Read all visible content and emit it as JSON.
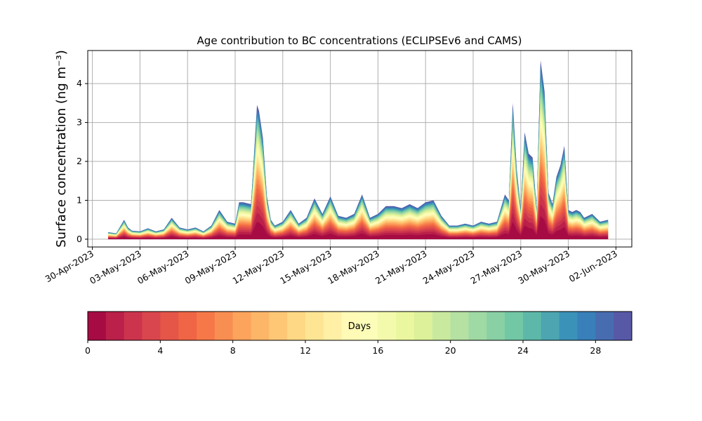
{
  "chart_data": {
    "type": "area",
    "title": "Age contribution to BC concentrations (ECLIPSEv6 and CAMS)",
    "xlabel": "",
    "ylabel": "Surface concentration (ng m⁻³)",
    "x_tick_labels": [
      "30-Apr-2023",
      "03-May-2023",
      "06-May-2023",
      "09-May-2023",
      "12-May-2023",
      "15-May-2023",
      "18-May-2023",
      "21-May-2023",
      "24-May-2023",
      "27-May-2023",
      "30-May-2023",
      "02-Jun-2023"
    ],
    "y_tick_labels": [
      "0",
      "1",
      "2",
      "3",
      "4"
    ],
    "ylim": [
      -0.2,
      4.85
    ],
    "xlim": [
      "2023-04-29T17:00",
      "2023-06-03T00:00"
    ],
    "grid": true,
    "total_series": {
      "name": "Total",
      "x": [
        "2023-05-01",
        "2023-05-01T12:00",
        "2023-05-02",
        "2023-05-02T06:00",
        "2023-05-02T12:00",
        "2023-05-03",
        "2023-05-03T12:00",
        "2023-05-04",
        "2023-05-04T12:00",
        "2023-05-05",
        "2023-05-05T12:00",
        "2023-05-06",
        "2023-05-06T12:00",
        "2023-05-07",
        "2023-05-07T12:00",
        "2023-05-08",
        "2023-05-08T12:00",
        "2023-05-09",
        "2023-05-09T06:00",
        "2023-05-09T12:00",
        "2023-05-10",
        "2023-05-10T09:00",
        "2023-05-10T12:00",
        "2023-05-10T18:00",
        "2023-05-11",
        "2023-05-11T06:00",
        "2023-05-11T12:00",
        "2023-05-12",
        "2023-05-12T12:00",
        "2023-05-13",
        "2023-05-13T12:00",
        "2023-05-14",
        "2023-05-14T12:00",
        "2023-05-15",
        "2023-05-15T12:00",
        "2023-05-16",
        "2023-05-16T12:00",
        "2023-05-17",
        "2023-05-17T12:00",
        "2023-05-18",
        "2023-05-18T12:00",
        "2023-05-19",
        "2023-05-19T12:00",
        "2023-05-20",
        "2023-05-20T12:00",
        "2023-05-21",
        "2023-05-21T12:00",
        "2023-05-22",
        "2023-05-22T12:00",
        "2023-05-23",
        "2023-05-23T12:00",
        "2023-05-24",
        "2023-05-24T12:00",
        "2023-05-25",
        "2023-05-25T12:00",
        "2023-05-26",
        "2023-05-26T06:00",
        "2023-05-26T12:00",
        "2023-05-26T18:00",
        "2023-05-27",
        "2023-05-27T06:00",
        "2023-05-27T12:00",
        "2023-05-27T18:00",
        "2023-05-28",
        "2023-05-28T06:00",
        "2023-05-28T12:00",
        "2023-05-28T18:00",
        "2023-05-29",
        "2023-05-29T06:00",
        "2023-05-29T12:00",
        "2023-05-29T18:00",
        "2023-05-30",
        "2023-05-30T06:00",
        "2023-05-30T12:00",
        "2023-05-30T18:00",
        "2023-05-31",
        "2023-05-31T12:00",
        "2023-06-01",
        "2023-06-01T12:00"
      ],
      "y": [
        0.18,
        0.15,
        0.5,
        0.3,
        0.22,
        0.2,
        0.28,
        0.2,
        0.25,
        0.55,
        0.3,
        0.25,
        0.3,
        0.2,
        0.35,
        0.75,
        0.45,
        0.4,
        0.95,
        0.95,
        0.9,
        3.45,
        3.3,
        2.6,
        1.1,
        0.5,
        0.35,
        0.45,
        0.75,
        0.4,
        0.55,
        1.05,
        0.65,
        1.1,
        0.6,
        0.55,
        0.65,
        1.15,
        0.55,
        0.65,
        0.85,
        0.85,
        0.8,
        0.9,
        0.8,
        0.95,
        1.0,
        0.6,
        0.35,
        0.35,
        0.4,
        0.35,
        0.45,
        0.4,
        0.45,
        1.15,
        1.0,
        3.5,
        1.8,
        0.8,
        2.75,
        2.2,
        2.1,
        0.8,
        4.6,
        3.8,
        1.2,
        0.9,
        1.6,
        1.9,
        2.4,
        0.75,
        0.7,
        0.75,
        0.7,
        0.55,
        0.65,
        0.45,
        0.5
      ]
    },
    "colorbar": {
      "label": "Days",
      "min": 0,
      "max": 30,
      "n_bins": 30,
      "tick_labels": [
        "0",
        "4",
        "8",
        "12",
        "16",
        "20",
        "24",
        "28"
      ],
      "colormap": "Spectral"
    }
  }
}
